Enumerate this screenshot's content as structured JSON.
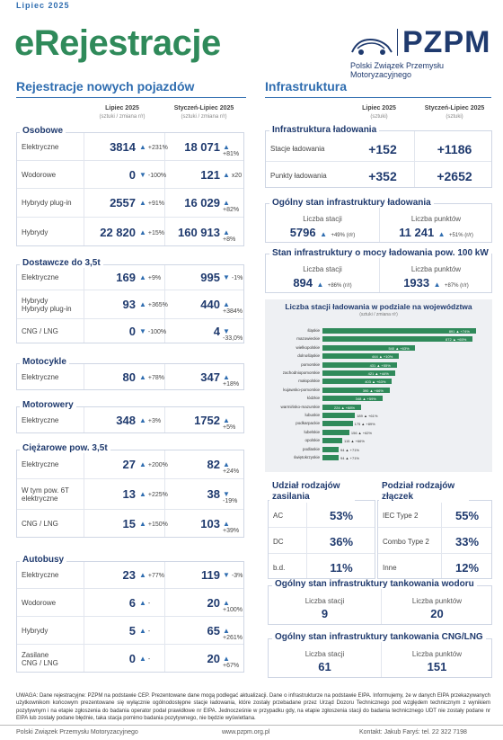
{
  "header": {
    "date": "Lipiec 2025",
    "title_e": "e",
    "title_rest": "Rejestracje",
    "org_short": "PZPM",
    "org_full": "Polski Związek Przemysłu Motoryzacyjnego"
  },
  "left": {
    "title": "Rejestracje nowych pojazdów",
    "col1": "Lipiec 2025",
    "col1_sub": "(sztuki / zmiana r/r)",
    "col2": "Styczeń-Lipiec 2025",
    "col2_sub": "(sztuki / zmiana r/r)",
    "groups": [
      {
        "title": "Osobowe",
        "rows": [
          {
            "label": "Elektryczne",
            "v1": "3814",
            "c1": "+231%",
            "v2": "18 071",
            "c2": "+81%"
          },
          {
            "label": "Wodorowe",
            "v1": "0",
            "c1": "-100%",
            "v2": "121",
            "c2": "x20"
          },
          {
            "label": "Hybrydy plug-in",
            "v1": "2557",
            "c1": "+91%",
            "v2": "16 029",
            "c2": "+82%"
          },
          {
            "label": "Hybrydy",
            "v1": "22 820",
            "c1": "+15%",
            "v2": "160 913",
            "c2": "+8%"
          }
        ]
      },
      {
        "title": "Dostawcze do 3,5t",
        "rows": [
          {
            "label": "Elektryczne",
            "v1": "169",
            "c1": "+9%",
            "v2": "995",
            "c2": "-1%"
          },
          {
            "label": "Hybrydy\nHybrydy plug-in",
            "v1": "93",
            "c1": "+365%",
            "v2": "440",
            "c2": "+384%"
          },
          {
            "label": "CNG / LNG",
            "v1": "0",
            "c1": "-100%",
            "v2": "4",
            "c2": "-33,0%"
          }
        ]
      },
      {
        "title": "Motocykle",
        "rows": [
          {
            "label": "Elektryczne",
            "v1": "80",
            "c1": "+78%",
            "v2": "347",
            "c2": "+18%"
          }
        ]
      },
      {
        "title": "Motorowery",
        "rows": [
          {
            "label": "Elektryczne",
            "v1": "348",
            "c1": "+3%",
            "v2": "1752",
            "c2": "+5%"
          }
        ]
      },
      {
        "title": "Ciężarowe pow. 3,5t",
        "rows": [
          {
            "label": "Elektryczne",
            "v1": "27",
            "c1": "+200%",
            "v2": "82",
            "c2": "+24%"
          },
          {
            "label": "W tym pow. 6T\nelektryczne",
            "v1": "13",
            "c1": "+225%",
            "v2": "38",
            "c2": "-19%"
          },
          {
            "label": "CNG / LNG",
            "v1": "15",
            "c1": "+150%",
            "v2": "103",
            "c2": "+39%"
          }
        ]
      },
      {
        "title": "Autobusy",
        "rows": [
          {
            "label": "Elektryczne",
            "v1": "23",
            "c1": "+77%",
            "v2": "119",
            "c2": "-3%"
          },
          {
            "label": "Wodorowe",
            "v1": "6",
            "c1": "-",
            "v2": "20",
            "c2": "+100%"
          },
          {
            "label": "Hybrydy",
            "v1": "5",
            "c1": "-",
            "v2": "65",
            "c2": "+261%"
          },
          {
            "label": "Zasilane\nCNG / LNG",
            "v1": "0",
            "c1": "-",
            "v2": "20",
            "c2": "+67%"
          }
        ]
      }
    ]
  },
  "right": {
    "title": "Infrastruktura",
    "col1": "Lipiec 2025",
    "col1_sub": "(sztuki)",
    "col2": "Styczeń-Lipiec 2025",
    "col2_sub": "(sztuki)",
    "charging": {
      "title": "Infrastruktura ładowania",
      "rows": [
        {
          "label": "Stacje ładowania",
          "v1": "+152",
          "v2": "+1186"
        },
        {
          "label": "Punkty ładowania",
          "v1": "+352",
          "v2": "+2652"
        }
      ]
    },
    "general": {
      "title": "Ogólny stan infrastruktury ładowania",
      "l1": "Liczba stacji",
      "v1": "5796",
      "c1": "+49% (r/r)",
      "l2": "Liczba punktów",
      "v2": "11 241",
      "c2": "+51% (r/r)"
    },
    "power": {
      "title": "Stan infrastruktury o mocy ładowania pow. 100 kW",
      "l1": "Liczba stacji",
      "v1": "894",
      "c1": "+86% (r/r)",
      "l2": "Liczba punktów",
      "v2": "1933",
      "c2": "+87% (r/r)"
    },
    "share_power": {
      "title": "Udział rodzajów zasilania",
      "rows": [
        {
          "label": "AC",
          "value": "53%"
        },
        {
          "label": "DC",
          "value": "36%"
        },
        {
          "label": "b.d.",
          "value": "11%"
        }
      ]
    },
    "share_conn": {
      "title": "Podział rodzajów złączek",
      "rows": [
        {
          "label": "IEC Type 2",
          "value": "55%"
        },
        {
          "label": "Combo Type 2",
          "value": "33%"
        },
        {
          "label": "Inne",
          "value": "12%"
        }
      ]
    },
    "hydrogen": {
      "title": "Ogólny stan infrastruktury tankowania wodoru",
      "l1": "Liczba stacji",
      "v1": "9",
      "l2": "Liczba punktów",
      "v2": "20"
    },
    "cng": {
      "title": "Ogólny stan infrastruktury tankowania CNG/LNG",
      "l1": "Liczba stacji",
      "v1": "61",
      "l2": "Liczba punktów",
      "v2": "151"
    }
  },
  "chart_data": {
    "type": "bar",
    "title": "Liczba stacji ładowania w podziale na województwa",
    "subtitle": "(sztuki / zmiana r/r)",
    "categories": [
      "śląskie",
      "mazowieckie",
      "wielkopolskie",
      "dolnośląskie",
      "pomorskie",
      "zachodniopomorskie",
      "małopolskie",
      "kujawsko-pomorskie",
      "łódzkie",
      "warmińsko-mazurskie",
      "lubuskie",
      "podkarpackie",
      "lubelskie",
      "opolskie",
      "podlaskie",
      "świętokrzyskie"
    ],
    "values": [
      891,
      872,
      540,
      444,
      431,
      421,
      403,
      390,
      348,
      224,
      189,
      175,
      156,
      115,
      94,
      94
    ],
    "labels": [
      "891 ▲ +74%",
      "872 ▲ +65%",
      "540 ▲ +63%",
      "444 ▲ +10%",
      "431 ▲ +55%",
      "421 ▲ +44%",
      "403 ▲ +63%",
      "390 ▲ +66%",
      "348 ▲ +59%",
      "224 ▲ +88%",
      "189 ▲ +61%",
      "175 ▲ +89%",
      "156 ▲ +62%",
      "115 ▲ +66%",
      "94 ▲ +71%",
      "94 ▲ +71%"
    ],
    "xlim": [
      0,
      950
    ],
    "bar_color": "#2f8a5a"
  },
  "note": "UWAGA: Dane rejestracyjne: PZPM na podstawie CEP. Prezentowane dane mogą podlegać aktualizacji. Dane o infrastrukturze na podstawie EIPA. Informujemy, że w danych EIPA przekazywanych użytkownikom końcowym prezentowane się wyłącznie ogólnodostępne stacje ładowania, które zostały przebadane przez Urząd Dozoru Technicznego pod względem technicznym z wynikiem pozytywnym i na etapie zgłoszenia do badania operator podał prawidłowe nr EIPA. Jednocześnie w przypadku gdy, na etapie zgłoszenia stacji do badania technicznego UDT nie zostały podane nr EIPA lub zostały podane błędnie, taka stacja pomimo badania pozytywnego, nie będzie wyświetlana.",
  "footer": {
    "left": "Polski Związek Przemysłu Motoryzacyjnego",
    "center": "www.pzpm.org.pl",
    "right": "Kontakt: Jakub Faryś: tel. 22 322 7198"
  }
}
